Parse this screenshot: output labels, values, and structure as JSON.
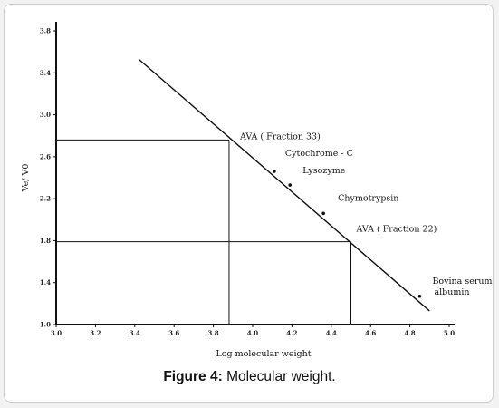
{
  "chart_data": {
    "type": "line",
    "title": "",
    "xlabel": "Log molecular weight",
    "ylabel": "Ve/ V0",
    "xlim": [
      3.0,
      5.0
    ],
    "ylim": [
      1.0,
      3.8
    ],
    "x_tick_labels": [
      "3.0",
      "3.2",
      "3.4",
      "3.6",
      "3.8",
      "4.0",
      "4.2",
      "4.4",
      "4.6",
      "4.8",
      "5.0"
    ],
    "y_tick_labels": [
      "1.0",
      "1.4",
      "1.8",
      "2.2",
      "2.6",
      "3.0",
      "3.4",
      "3.8"
    ],
    "calibration_line": {
      "x": [
        3.42,
        4.9
      ],
      "y": [
        3.53,
        1.13
      ]
    },
    "points": [
      {
        "label": "AVA ( Fraction 33)",
        "x": 3.88,
        "y": 2.76,
        "marked": false,
        "guide": true
      },
      {
        "label": "Cytochrome - C",
        "x": 4.11,
        "y": 2.46,
        "marked": true,
        "guide": false
      },
      {
        "label": "Lysozyme",
        "x": 4.19,
        "y": 2.33,
        "marked": true,
        "guide": false
      },
      {
        "label": "Chymotrypsin",
        "x": 4.36,
        "y": 2.06,
        "marked": true,
        "guide": false
      },
      {
        "label": "AVA ( Fraction 22)",
        "x": 4.5,
        "y": 1.79,
        "marked": false,
        "guide": true
      },
      {
        "label": "Bovina serum albumin",
        "x": 4.85,
        "y": 1.27,
        "marked": true,
        "guide": false
      }
    ],
    "grid": false,
    "legend": "none"
  },
  "caption": {
    "prefix": "Figure 4:",
    "text": " Molecular weight."
  }
}
